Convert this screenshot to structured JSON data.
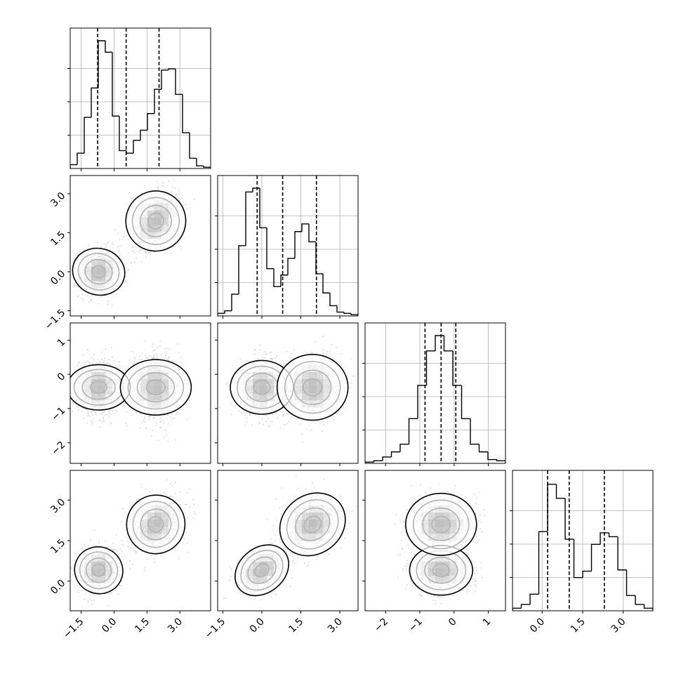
{
  "chart_data": {
    "type": "corner",
    "grid": true,
    "colors": {
      "ink": "#000000",
      "grid": "#b0b0b0",
      "scatter": "#808080",
      "density": "#000000"
    },
    "variables": [
      {
        "range": [
          -2.0,
          4.4
        ],
        "ticks": [
          -1.5,
          0.0,
          1.5,
          3.0
        ],
        "tick_labels": [
          "−1.5",
          "0.0",
          "1.5",
          "3.0"
        ],
        "quantiles": [
          -0.75,
          0.55,
          2.05
        ],
        "hist": [
          0.03,
          0.12,
          0.4,
          0.63,
          1.0,
          0.91,
          0.41,
          0.14,
          0.12,
          0.22,
          0.3,
          0.43,
          0.62,
          0.77,
          0.78,
          0.58,
          0.28,
          0.08,
          0.02,
          0.01
        ]
      },
      {
        "range": [
          -1.7,
          3.7
        ],
        "ticks": [
          -1.5,
          0.0,
          1.5,
          3.0
        ],
        "tick_labels": [
          "−1.5",
          "0.0",
          "1.5",
          "3.0"
        ],
        "quantiles": [
          -0.18,
          0.8,
          2.1
        ],
        "hist": [
          0.02,
          0.04,
          0.17,
          0.55,
          0.97,
          1.0,
          0.69,
          0.37,
          0.23,
          0.32,
          0.45,
          0.66,
          0.72,
          0.58,
          0.33,
          0.18,
          0.08,
          0.03,
          0.02,
          0.01
        ]
      },
      {
        "range": [
          -2.6,
          1.5
        ],
        "ticks": [
          -2,
          -1,
          0,
          1
        ],
        "tick_labels": [
          "−2",
          "−1",
          "0",
          "1"
        ],
        "quantiles": [
          -0.85,
          -0.38,
          0.05
        ],
        "hist": [
          0.01,
          0.02,
          0.05,
          0.09,
          0.15,
          0.35,
          0.61,
          0.88,
          1.0,
          0.88,
          0.61,
          0.35,
          0.15,
          0.09,
          0.03,
          0.02
        ]
      },
      {
        "range": [
          -1.1,
          4.1
        ],
        "ticks": [
          0.0,
          1.5,
          3.0
        ],
        "tick_labels": [
          "0.0",
          "1.5",
          "3.0"
        ],
        "quantiles": [
          0.2,
          1.0,
          2.3
        ],
        "hist": [
          0.02,
          0.05,
          0.13,
          0.62,
          0.99,
          0.88,
          0.56,
          0.26,
          0.31,
          0.52,
          0.61,
          0.58,
          0.32,
          0.12,
          0.05,
          0.02
        ]
      }
    ],
    "y_ticks": [
      null,
      {
        "ticks": [
          -1.5,
          0.0,
          1.5,
          3.0
        ],
        "tick_labels": [
          "−1.5",
          "0.0",
          "1.5",
          "3.0"
        ]
      },
      {
        "ticks": [
          -2,
          -1,
          0,
          1
        ],
        "tick_labels": [
          "−2",
          "−1",
          "0",
          "1"
        ]
      },
      {
        "ticks": [
          0.0,
          1.5,
          3.0
        ],
        "tick_labels": [
          "0.0",
          "1.5",
          "3.0"
        ]
      }
    ],
    "modes": [
      {
        "center": [
          -0.7,
          0.0,
          -0.38,
          0.4
        ],
        "sd": [
          0.45,
          0.45,
          0.4,
          0.4
        ],
        "corr": [
          [
            1,
            0.1,
            0,
            0.1
          ],
          [
            0.1,
            1,
            0,
            0.35
          ],
          [
            0,
            0,
            1,
            0
          ],
          [
            0.1,
            0.35,
            0,
            1
          ]
        ]
      },
      {
        "center": [
          1.9,
          1.95,
          -0.38,
          2.1
        ],
        "sd": [
          0.55,
          0.55,
          0.45,
          0.5
        ],
        "corr": [
          [
            1,
            0.35,
            0,
            0.25
          ],
          [
            0.35,
            1,
            0,
            0.2
          ],
          [
            0,
            0,
            1,
            0
          ],
          [
            0.25,
            0.2,
            0,
            1
          ]
        ]
      }
    ]
  }
}
